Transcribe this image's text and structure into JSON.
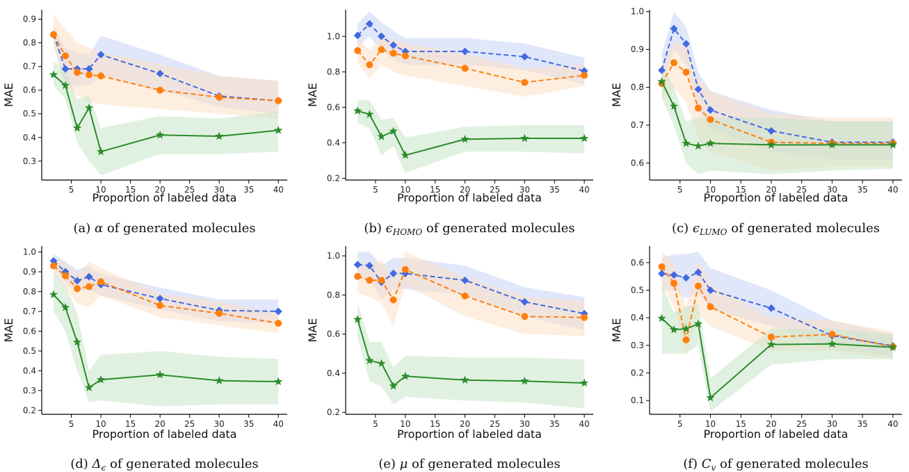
{
  "styles": {
    "series_colors": {
      "blue": "#4169e1",
      "orange": "#ff7f0e",
      "green": "#2a8c2a"
    },
    "band_colors": {
      "blue": "#c8d3f5",
      "orange": "#fde0c5",
      "green": "#c9e6c9"
    }
  },
  "chart_data": [
    {
      "type": "line",
      "caption_prefix": "(a) ",
      "caption_symbol": "α",
      "caption_sub": "",
      "caption_suffix": " of generated molecules",
      "xlabel": "Proportion of labeled data",
      "ylabel": "MAE",
      "xlim": [
        0,
        41.5
      ],
      "ylim": [
        0.22,
        0.94
      ],
      "xticks": [
        5,
        10,
        15,
        20,
        25,
        30,
        35,
        40
      ],
      "yticks": [
        0.3,
        0.4,
        0.5,
        0.6,
        0.7,
        0.8,
        0.9
      ],
      "ytick_labels": [
        "0.3",
        "0.4",
        "0.5",
        "0.6",
        "0.7",
        "0.8",
        "0.9"
      ],
      "x": [
        2,
        4,
        6,
        8,
        10,
        20,
        30,
        40
      ],
      "series": [
        {
          "color": "blue",
          "marker": "diamond",
          "dash": true,
          "values": [
            0.835,
            0.69,
            0.69,
            0.69,
            0.75,
            0.67,
            0.575,
            0.555
          ],
          "lower": [
            0.8,
            0.62,
            0.62,
            0.62,
            0.66,
            0.6,
            0.53,
            0.5
          ],
          "upper": [
            0.87,
            0.78,
            0.76,
            0.75,
            0.83,
            0.75,
            0.66,
            0.64
          ]
        },
        {
          "color": "orange",
          "marker": "circle",
          "dash": true,
          "values": [
            0.835,
            0.745,
            0.675,
            0.665,
            0.66,
            0.6,
            0.57,
            0.555
          ],
          "lower": [
            0.78,
            0.62,
            0.58,
            0.55,
            0.54,
            0.52,
            0.5,
            0.48
          ],
          "upper": [
            0.92,
            0.86,
            0.8,
            0.78,
            0.76,
            0.71,
            0.66,
            0.64
          ]
        },
        {
          "color": "green",
          "marker": "star",
          "dash": false,
          "values": [
            0.665,
            0.62,
            0.44,
            0.525,
            0.34,
            0.41,
            0.405,
            0.43
          ],
          "lower": [
            0.62,
            0.56,
            0.38,
            0.3,
            0.24,
            0.33,
            0.33,
            0.34
          ],
          "upper": [
            0.72,
            0.69,
            0.56,
            0.58,
            0.44,
            0.49,
            0.48,
            0.51
          ]
        }
      ]
    },
    {
      "type": "line",
      "caption_prefix": "(b) ",
      "caption_symbol": "ϵ",
      "caption_sub": "HOMO",
      "caption_suffix": " of generated molecules",
      "xlabel": "Proportion of labeled data",
      "ylabel": "MAE",
      "xlim": [
        0,
        41.5
      ],
      "ylim": [
        0.19,
        1.15
      ],
      "xticks": [
        5,
        10,
        15,
        20,
        25,
        30,
        35,
        40
      ],
      "yticks": [
        0.2,
        0.4,
        0.6,
        0.8,
        1.0
      ],
      "ytick_labels": [
        "0.2",
        "0.4",
        "0.6",
        "0.8",
        "1.0"
      ],
      "x": [
        2,
        4,
        6,
        8,
        10,
        20,
        30,
        40
      ],
      "series": [
        {
          "color": "blue",
          "marker": "diamond",
          "dash": true,
          "values": [
            1.005,
            1.07,
            1.0,
            0.95,
            0.915,
            0.915,
            0.885,
            0.805
          ],
          "lower": [
            0.94,
            1.0,
            0.92,
            0.87,
            0.84,
            0.84,
            0.81,
            0.73
          ],
          "upper": [
            1.07,
            1.14,
            1.08,
            1.03,
            0.99,
            0.99,
            0.96,
            0.88
          ]
        },
        {
          "color": "orange",
          "marker": "circle",
          "dash": true,
          "values": [
            0.92,
            0.84,
            0.925,
            0.905,
            0.89,
            0.82,
            0.74,
            0.78
          ],
          "lower": [
            0.85,
            0.76,
            0.84,
            0.8,
            0.78,
            0.72,
            0.66,
            0.72
          ],
          "upper": [
            0.99,
            0.92,
            1.0,
            0.98,
            0.96,
            0.9,
            0.82,
            0.84
          ]
        },
        {
          "color": "green",
          "marker": "star",
          "dash": false,
          "values": [
            0.58,
            0.56,
            0.435,
            0.465,
            0.33,
            0.42,
            0.425,
            0.425
          ],
          "lower": [
            0.51,
            0.48,
            0.33,
            0.38,
            0.23,
            0.35,
            0.35,
            0.34
          ],
          "upper": [
            0.64,
            0.64,
            0.53,
            0.54,
            0.43,
            0.49,
            0.5,
            0.5
          ]
        }
      ]
    },
    {
      "type": "line",
      "caption_prefix": "(c) ",
      "caption_symbol": "ϵ",
      "caption_sub": "LUMO",
      "caption_suffix": " of generated molecules",
      "xlabel": "Proportion of labeled data",
      "ylabel": "MAE",
      "xlim": [
        0,
        41.5
      ],
      "ylim": [
        0.555,
        1.005
      ],
      "xticks": [
        5,
        10,
        15,
        20,
        25,
        30,
        35,
        40
      ],
      "yticks": [
        0.6,
        0.7,
        0.8,
        0.9,
        1.0
      ],
      "ytick_labels": [
        "0.6",
        "0.7",
        "0.8",
        "0.9",
        "1.0"
      ],
      "x": [
        2,
        4,
        6,
        8,
        10,
        20,
        30,
        40
      ],
      "series": [
        {
          "color": "blue",
          "marker": "diamond",
          "dash": true,
          "values": [
            0.845,
            0.955,
            0.915,
            0.795,
            0.74,
            0.685,
            0.655,
            0.655
          ],
          "lower": [
            0.8,
            0.9,
            0.86,
            0.74,
            0.69,
            0.63,
            0.61,
            0.61
          ],
          "upper": [
            0.89,
            1.0,
            0.96,
            0.84,
            0.79,
            0.74,
            0.71,
            0.71
          ]
        },
        {
          "color": "orange",
          "marker": "circle",
          "dash": true,
          "values": [
            0.81,
            0.865,
            0.84,
            0.745,
            0.715,
            0.655,
            0.652,
            0.652
          ],
          "lower": [
            0.77,
            0.8,
            0.76,
            0.66,
            0.63,
            0.58,
            0.59,
            0.59
          ],
          "upper": [
            0.86,
            0.92,
            0.91,
            0.82,
            0.79,
            0.73,
            0.72,
            0.72
          ]
        },
        {
          "color": "green",
          "marker": "star",
          "dash": false,
          "values": [
            0.815,
            0.75,
            0.652,
            0.645,
            0.652,
            0.648,
            0.648,
            0.648
          ],
          "lower": [
            0.77,
            0.7,
            0.6,
            0.57,
            0.58,
            0.57,
            0.58,
            0.585
          ],
          "upper": [
            0.86,
            0.8,
            0.71,
            0.72,
            0.72,
            0.72,
            0.71,
            0.71
          ]
        }
      ]
    },
    {
      "type": "line",
      "caption_prefix": "(d) ",
      "caption_symbol": "Δ",
      "caption_sub": "ϵ",
      "caption_suffix": " of generated molecules",
      "xlabel": "Proportion of labeled data",
      "ylabel": "MAE",
      "xlim": [
        0,
        41.5
      ],
      "ylim": [
        0.18,
        1.03
      ],
      "xticks": [
        5,
        10,
        15,
        20,
        25,
        30,
        35,
        40
      ],
      "yticks": [
        0.2,
        0.3,
        0.4,
        0.5,
        0.6,
        0.7,
        0.8,
        0.9,
        1.0
      ],
      "ytick_labels": [
        "0.2",
        "0.3",
        "0.4",
        "0.5",
        "0.6",
        "0.7",
        "0.8",
        "0.9",
        "1.0"
      ],
      "x": [
        2,
        4,
        6,
        8,
        10,
        20,
        30,
        40
      ],
      "series": [
        {
          "color": "blue",
          "marker": "diamond",
          "dash": true,
          "values": [
            0.955,
            0.9,
            0.855,
            0.875,
            0.835,
            0.765,
            0.705,
            0.7
          ],
          "lower": [
            0.92,
            0.85,
            0.8,
            0.81,
            0.78,
            0.71,
            0.65,
            0.64
          ],
          "upper": [
            0.99,
            0.95,
            0.91,
            0.93,
            0.89,
            0.82,
            0.76,
            0.76
          ]
        },
        {
          "color": "orange",
          "marker": "circle",
          "dash": true,
          "values": [
            0.93,
            0.88,
            0.815,
            0.825,
            0.85,
            0.73,
            0.69,
            0.64
          ],
          "lower": [
            0.89,
            0.82,
            0.74,
            0.72,
            0.78,
            0.67,
            0.63,
            0.59
          ],
          "upper": [
            0.97,
            0.94,
            0.89,
            0.95,
            0.92,
            0.79,
            0.75,
            0.69
          ]
        },
        {
          "color": "green",
          "marker": "star",
          "dash": false,
          "values": [
            0.785,
            0.72,
            0.545,
            0.315,
            0.355,
            0.38,
            0.35,
            0.345
          ],
          "lower": [
            0.7,
            0.6,
            0.4,
            0.24,
            0.25,
            0.22,
            0.23,
            0.23
          ],
          "upper": [
            0.9,
            0.83,
            0.69,
            0.4,
            0.48,
            0.5,
            0.47,
            0.46
          ]
        }
      ]
    },
    {
      "type": "line",
      "caption_prefix": "(e) ",
      "caption_symbol": "μ",
      "caption_sub": "",
      "caption_suffix": " of generated molecules",
      "xlabel": "Proportion of labeled data",
      "ylabel": "MAE",
      "xlim": [
        0,
        41.5
      ],
      "ylim": [
        0.19,
        1.05
      ],
      "xticks": [
        5,
        10,
        15,
        20,
        25,
        30,
        35,
        40
      ],
      "yticks": [
        0.2,
        0.4,
        0.6,
        0.8,
        1.0
      ],
      "ytick_labels": [
        "0.2",
        "0.4",
        "0.6",
        "0.8",
        "1.0"
      ],
      "x": [
        2,
        4,
        6,
        8,
        10,
        20,
        30,
        40
      ],
      "series": [
        {
          "color": "blue",
          "marker": "diamond",
          "dash": true,
          "values": [
            0.955,
            0.95,
            0.865,
            0.91,
            0.91,
            0.875,
            0.765,
            0.705
          ],
          "lower": [
            0.89,
            0.88,
            0.78,
            0.83,
            0.83,
            0.8,
            0.69,
            0.62
          ],
          "upper": [
            1.02,
            1.02,
            0.95,
            0.99,
            0.99,
            0.95,
            0.84,
            0.79
          ]
        },
        {
          "color": "orange",
          "marker": "circle",
          "dash": true,
          "values": [
            0.895,
            0.875,
            0.875,
            0.775,
            0.93,
            0.795,
            0.69,
            0.685
          ],
          "lower": [
            0.81,
            0.79,
            0.76,
            0.64,
            0.85,
            0.69,
            0.6,
            0.59
          ],
          "upper": [
            0.97,
            0.96,
            0.98,
            0.88,
            1.02,
            0.89,
            0.79,
            0.77
          ]
        },
        {
          "color": "green",
          "marker": "star",
          "dash": false,
          "values": [
            0.675,
            0.465,
            0.45,
            0.335,
            0.385,
            0.365,
            0.36,
            0.35
          ],
          "lower": [
            0.58,
            0.36,
            0.33,
            0.24,
            0.28,
            0.26,
            0.25,
            0.22
          ],
          "upper": [
            0.76,
            0.56,
            0.56,
            0.43,
            0.49,
            0.48,
            0.48,
            0.47
          ]
        }
      ]
    },
    {
      "type": "line",
      "caption_prefix": "(f) ",
      "caption_symbol": "C",
      "caption_sub": "v",
      "caption_suffix": " of generated molecules",
      "xlabel": "Proportion of labeled data",
      "ylabel": "MAE",
      "xlim": [
        0,
        41.5
      ],
      "ylim": [
        0.05,
        0.66
      ],
      "xticks": [
        5,
        10,
        15,
        20,
        25,
        30,
        35,
        40
      ],
      "yticks": [
        0.1,
        0.2,
        0.3,
        0.4,
        0.5,
        0.6
      ],
      "ytick_labels": [
        "0.1",
        "0.2",
        "0.3",
        "0.4",
        "0.5",
        "0.6"
      ],
      "x": [
        2,
        4,
        6,
        8,
        10,
        20,
        30,
        40
      ],
      "series": [
        {
          "color": "blue",
          "marker": "diamond",
          "dash": true,
          "values": [
            0.56,
            0.555,
            0.545,
            0.565,
            0.5,
            0.435,
            0.335,
            0.298
          ],
          "lower": [
            0.5,
            0.5,
            0.47,
            0.49,
            0.43,
            0.37,
            0.29,
            0.26
          ],
          "upper": [
            0.62,
            0.63,
            0.63,
            0.64,
            0.58,
            0.5,
            0.39,
            0.34
          ]
        },
        {
          "color": "orange",
          "marker": "circle",
          "dash": true,
          "values": [
            0.585,
            0.525,
            0.32,
            0.515,
            0.44,
            0.33,
            0.34,
            0.295
          ],
          "lower": [
            0.52,
            0.44,
            0.26,
            0.41,
            0.37,
            0.28,
            0.28,
            0.25
          ],
          "upper": [
            0.64,
            0.6,
            0.44,
            0.61,
            0.52,
            0.4,
            0.39,
            0.35
          ]
        },
        {
          "color": "green",
          "marker": "star",
          "dash": false,
          "values": [
            0.398,
            0.357,
            0.36,
            0.378,
            0.11,
            0.303,
            0.305,
            0.293
          ],
          "lower": [
            0.27,
            0.27,
            0.27,
            0.3,
            0.06,
            0.23,
            0.25,
            0.25
          ],
          "upper": [
            0.52,
            0.42,
            0.44,
            0.45,
            0.18,
            0.36,
            0.36,
            0.34
          ]
        }
      ]
    }
  ]
}
